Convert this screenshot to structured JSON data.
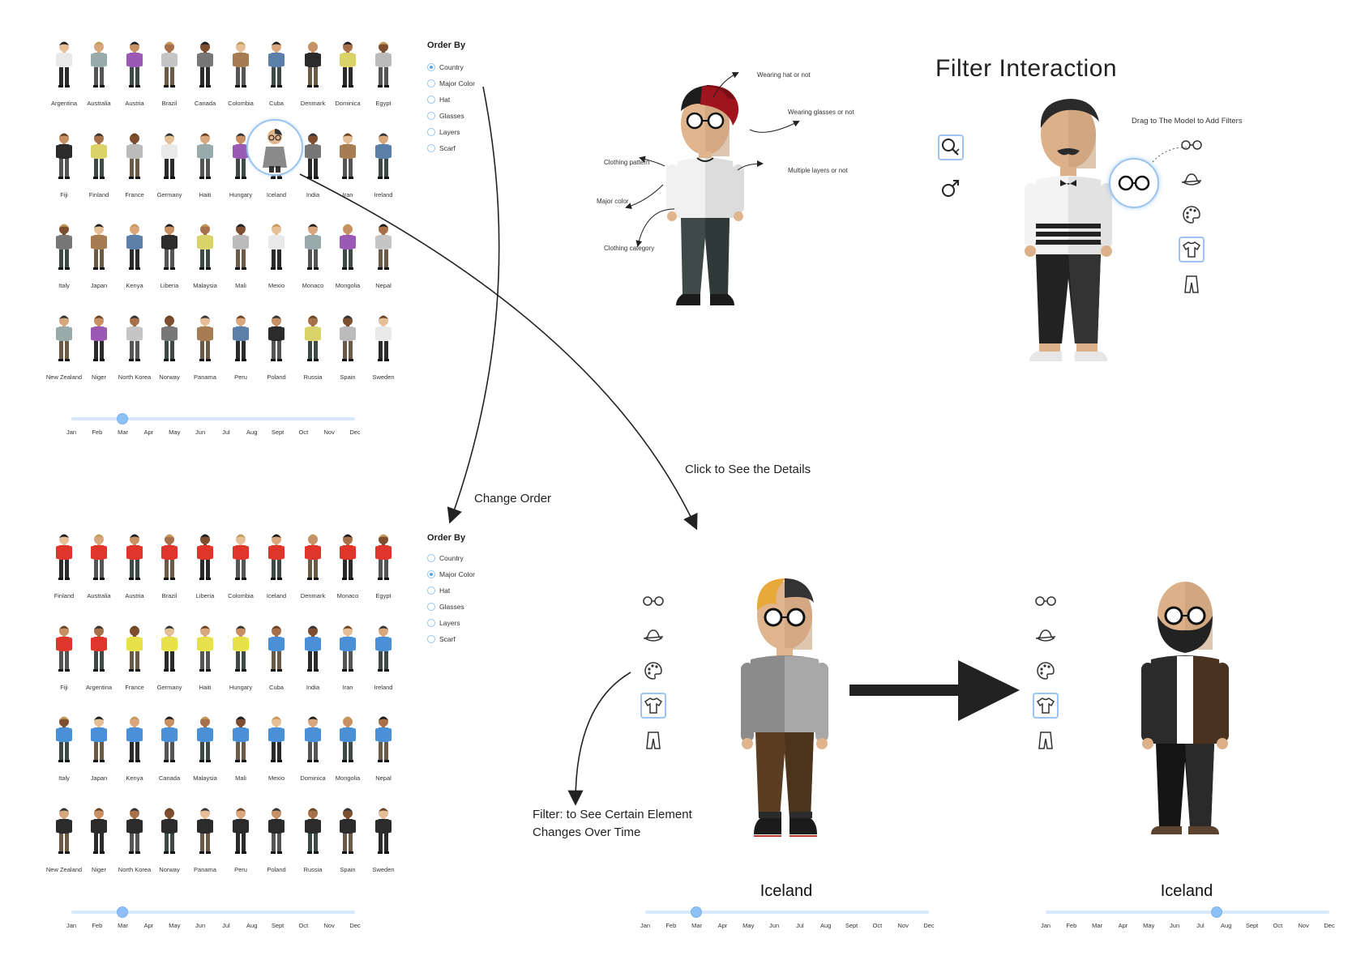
{
  "grid1": {
    "countries": [
      [
        "Argentina",
        "Australia",
        "Austria",
        "Brazil",
        "Canada",
        "Colombia",
        "Cuba",
        "Denmark",
        "Dominica",
        "Egypt"
      ],
      [
        "Fiji",
        "Finland",
        "France",
        "Germany",
        "Haiti",
        "Hungary",
        "Iceland",
        "India",
        "Iran",
        "Ireland"
      ],
      [
        "Italy",
        "Japan",
        "Kenya",
        "Liberia",
        "Malaysia",
        "Mali",
        "Mexio",
        "Monaco",
        "Mongolia",
        "Nepal"
      ],
      [
        "New Zealand",
        "Niger",
        "North Korea",
        "Norway",
        "Panama",
        "Peru",
        "Poland",
        "Russia",
        "Spain",
        "Sweden"
      ]
    ]
  },
  "grid2": {
    "countries": [
      [
        "Finland",
        "Australia",
        "Austria",
        "Brazil",
        "Liberia",
        "Colombia",
        "Iceland",
        "Denmark",
        "Monaco",
        "Egypt"
      ],
      [
        "Fiji",
        "Argentina",
        "France",
        "Germany",
        "Haiti",
        "Hungary",
        "Cuba",
        "India",
        "Iran",
        "Ireland"
      ],
      [
        "Italy",
        "Japan",
        "Kenya",
        "Canada",
        "Malaysia",
        "Mali",
        "Mexio",
        "Dominica",
        "Mongolia",
        "Nepal"
      ],
      [
        "New Zealand",
        "Niger",
        "North Korea",
        "Norway",
        "Panama",
        "Peru",
        "Poland",
        "Russia",
        "Spain",
        "Sweden"
      ]
    ]
  },
  "order_by": {
    "title": "Order By",
    "options": [
      "Country",
      "Major Color",
      "Hat",
      "Glasses",
      "Layers",
      "Scarf"
    ],
    "selected_top": "Country",
    "selected_bottom": "Major Color"
  },
  "months": [
    "Jan",
    "Feb",
    "Mar",
    "Apr",
    "May",
    "Jun",
    "Jul",
    "Aug",
    "Sept",
    "Oct",
    "Nov",
    "Dec"
  ],
  "sliders": {
    "top_left": "Mar",
    "bottom_left": "Mar",
    "detail_left": "Mar",
    "detail_right": "Aug"
  },
  "annotations": {
    "change_order": "Change Order",
    "click_details": "Click to See the Details",
    "filter_text_1": "Filter: to See Certain Element",
    "filter_text_2": "Changes Over Time",
    "filter_title": "Filter Interaction",
    "drag_text": "Drag to The Model to Add Filters",
    "wearing_hat": "Wearing hat or not",
    "wearing_glasses": "Wearing glasses or not",
    "clothing_pattern": "Clothing pattern",
    "multiple_layers": "Multiple layers or not",
    "major_color": "Major color",
    "clothing_category": "Clothing category"
  },
  "detail_left": {
    "country": "Iceland"
  },
  "detail_right": {
    "country": "Iceland"
  },
  "filter_tools": [
    "glasses-icon",
    "hat-icon",
    "palette-icon",
    "shirt-icon",
    "pants-icon"
  ],
  "colors": {
    "accent": "#5aa3f0",
    "track": "#d6e8fb",
    "dark": "#2b2b2b"
  }
}
